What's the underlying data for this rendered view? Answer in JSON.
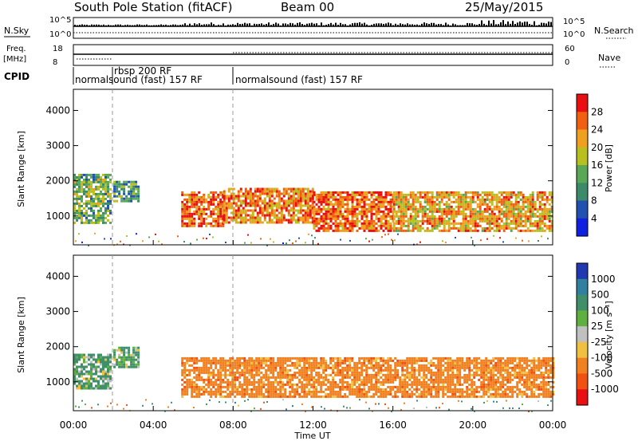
{
  "header": {
    "station": "South Pole Station (fitACF)",
    "beam": "Beam 00",
    "date": "25/May/2015"
  },
  "top_panels": {
    "nsky_label": "N.Sky",
    "nsearch_label": "N.Search",
    "freq_label": "Freq.",
    "freq_unit": "[MHz]",
    "nave_label": "Nave",
    "cpid_label": "CPID",
    "noise_ticks_left": [
      "10^5",
      "10^0"
    ],
    "noise_ticks_right": [
      "10^5",
      "10^0"
    ],
    "freq_ticks": [
      "18",
      "8"
    ],
    "nave_ticks": [
      "60",
      "0"
    ],
    "cpid_segments": [
      {
        "label": "normalsound (fast) 157 RF",
        "start_h": 0.0,
        "end_h": 2.0
      },
      {
        "label": "rbsp 200 RF",
        "start_h": 2.0,
        "end_h": 2.0
      },
      {
        "label": "normalsound (fast) 157 RF",
        "start_h": 8.0,
        "end_h": 24.0
      }
    ]
  },
  "axes": {
    "ylabel": "Slant Range [km]",
    "xlabel": "Time UT",
    "xticks": [
      "00:00",
      "04:00",
      "08:00",
      "12:00",
      "16:00",
      "20:00",
      "00:00"
    ],
    "yticks": [
      "1000",
      "2000",
      "3000",
      "4000"
    ]
  },
  "colorbars": {
    "power": {
      "label": "Power [dB]",
      "ticks": [
        "4",
        "8",
        "12",
        "16",
        "20",
        "24",
        "28"
      ],
      "colors": [
        "#1020e0",
        "#2050b0",
        "#3b8a6a",
        "#58a858",
        "#b8c020",
        "#f0a020",
        "#f06010",
        "#e81010"
      ]
    },
    "velocity": {
      "label": "Velocity [m s⁻¹]",
      "ticks": [
        "1000",
        "500",
        "100",
        "25",
        "-25",
        "-100",
        "-500",
        "-1000"
      ],
      "colors": [
        "#2038b0",
        "#3080a0",
        "#3f8f6a",
        "#60b040",
        "#c0c0c0",
        "#f0c040",
        "#f08020",
        "#f05010",
        "#e81010"
      ]
    }
  },
  "chart_data": [
    {
      "type": "heatmap",
      "title": "South Pole Station (fitACF) Beam 00 25/May/2015",
      "xlabel": "Time UT",
      "ylabel": "Slant Range [km]",
      "zlabel": "Power [dB]",
      "xlim_hours": [
        0,
        24
      ],
      "ylim_km": [
        180,
        4600
      ],
      "zlim": [
        0,
        32
      ],
      "bands": [
        {
          "t0": 0.0,
          "t1": 1.9,
          "r_lo": 800,
          "r_hi": 2200,
          "z": 14
        },
        {
          "t0": 2.0,
          "t1": 3.3,
          "r_lo": 1400,
          "r_hi": 2000,
          "z": 12
        },
        {
          "t0": 5.4,
          "t1": 7.5,
          "r_lo": 700,
          "r_hi": 1700,
          "z": 26
        },
        {
          "t0": 7.5,
          "t1": 12.0,
          "r_lo": 800,
          "r_hi": 1800,
          "z": 24
        },
        {
          "t0": 12.0,
          "t1": 16.0,
          "r_lo": 600,
          "r_hi": 1700,
          "z": 26
        },
        {
          "t0": 16.0,
          "t1": 24.0,
          "r_lo": 600,
          "r_hi": 1700,
          "z": 22
        }
      ]
    },
    {
      "type": "heatmap",
      "title": "",
      "xlabel": "Time UT",
      "ylabel": "Slant Range [km]",
      "zlabel": "Velocity [m s⁻¹]",
      "xlim_hours": [
        0,
        24
      ],
      "ylim_km": [
        180,
        4600
      ],
      "zlim": [
        -1000,
        1000
      ],
      "bands": [
        {
          "t0": 0.0,
          "t1": 1.9,
          "r_lo": 800,
          "r_hi": 1800,
          "z": 200
        },
        {
          "t0": 2.0,
          "t1": 3.3,
          "r_lo": 1400,
          "r_hi": 2000,
          "z": 150
        },
        {
          "t0": 5.4,
          "t1": 24.0,
          "r_lo": 600,
          "r_hi": 1700,
          "z": -300
        }
      ]
    }
  ]
}
